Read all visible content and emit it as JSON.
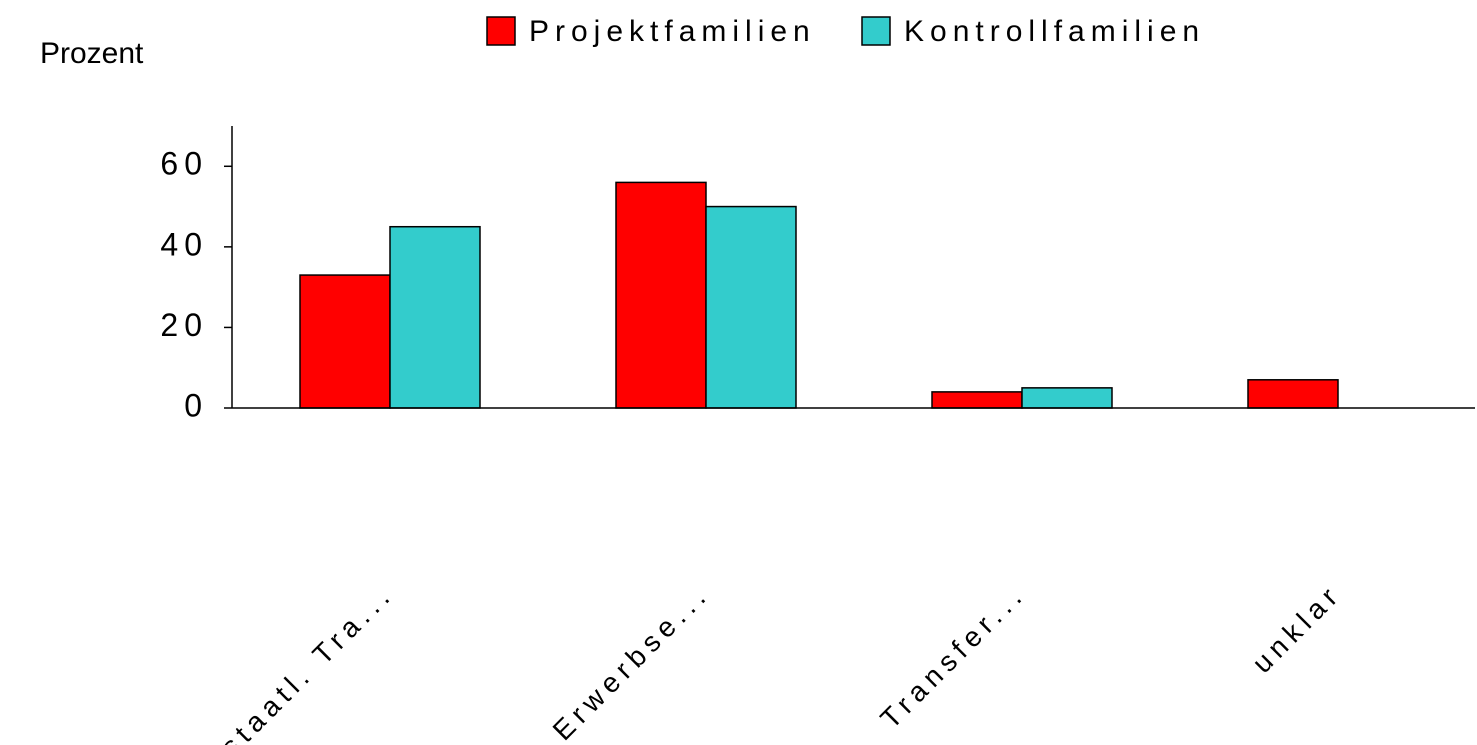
{
  "chart_data": {
    "type": "bar",
    "y_label": "Prozent",
    "categories": [
      "staatl. Tra...",
      "Erwerbse...",
      "Transfer...",
      "unklar"
    ],
    "series": [
      {
        "name": "Projektfamilien",
        "color": "#ff0000",
        "values": [
          33,
          56,
          4,
          7
        ]
      },
      {
        "name": "Kontrollfamilien",
        "color": "#33cccc",
        "values": [
          45,
          50,
          5,
          0
        ]
      }
    ],
    "ylim": [
      0,
      70
    ],
    "yticks": [
      0,
      20,
      40,
      60
    ],
    "legend": "top"
  }
}
